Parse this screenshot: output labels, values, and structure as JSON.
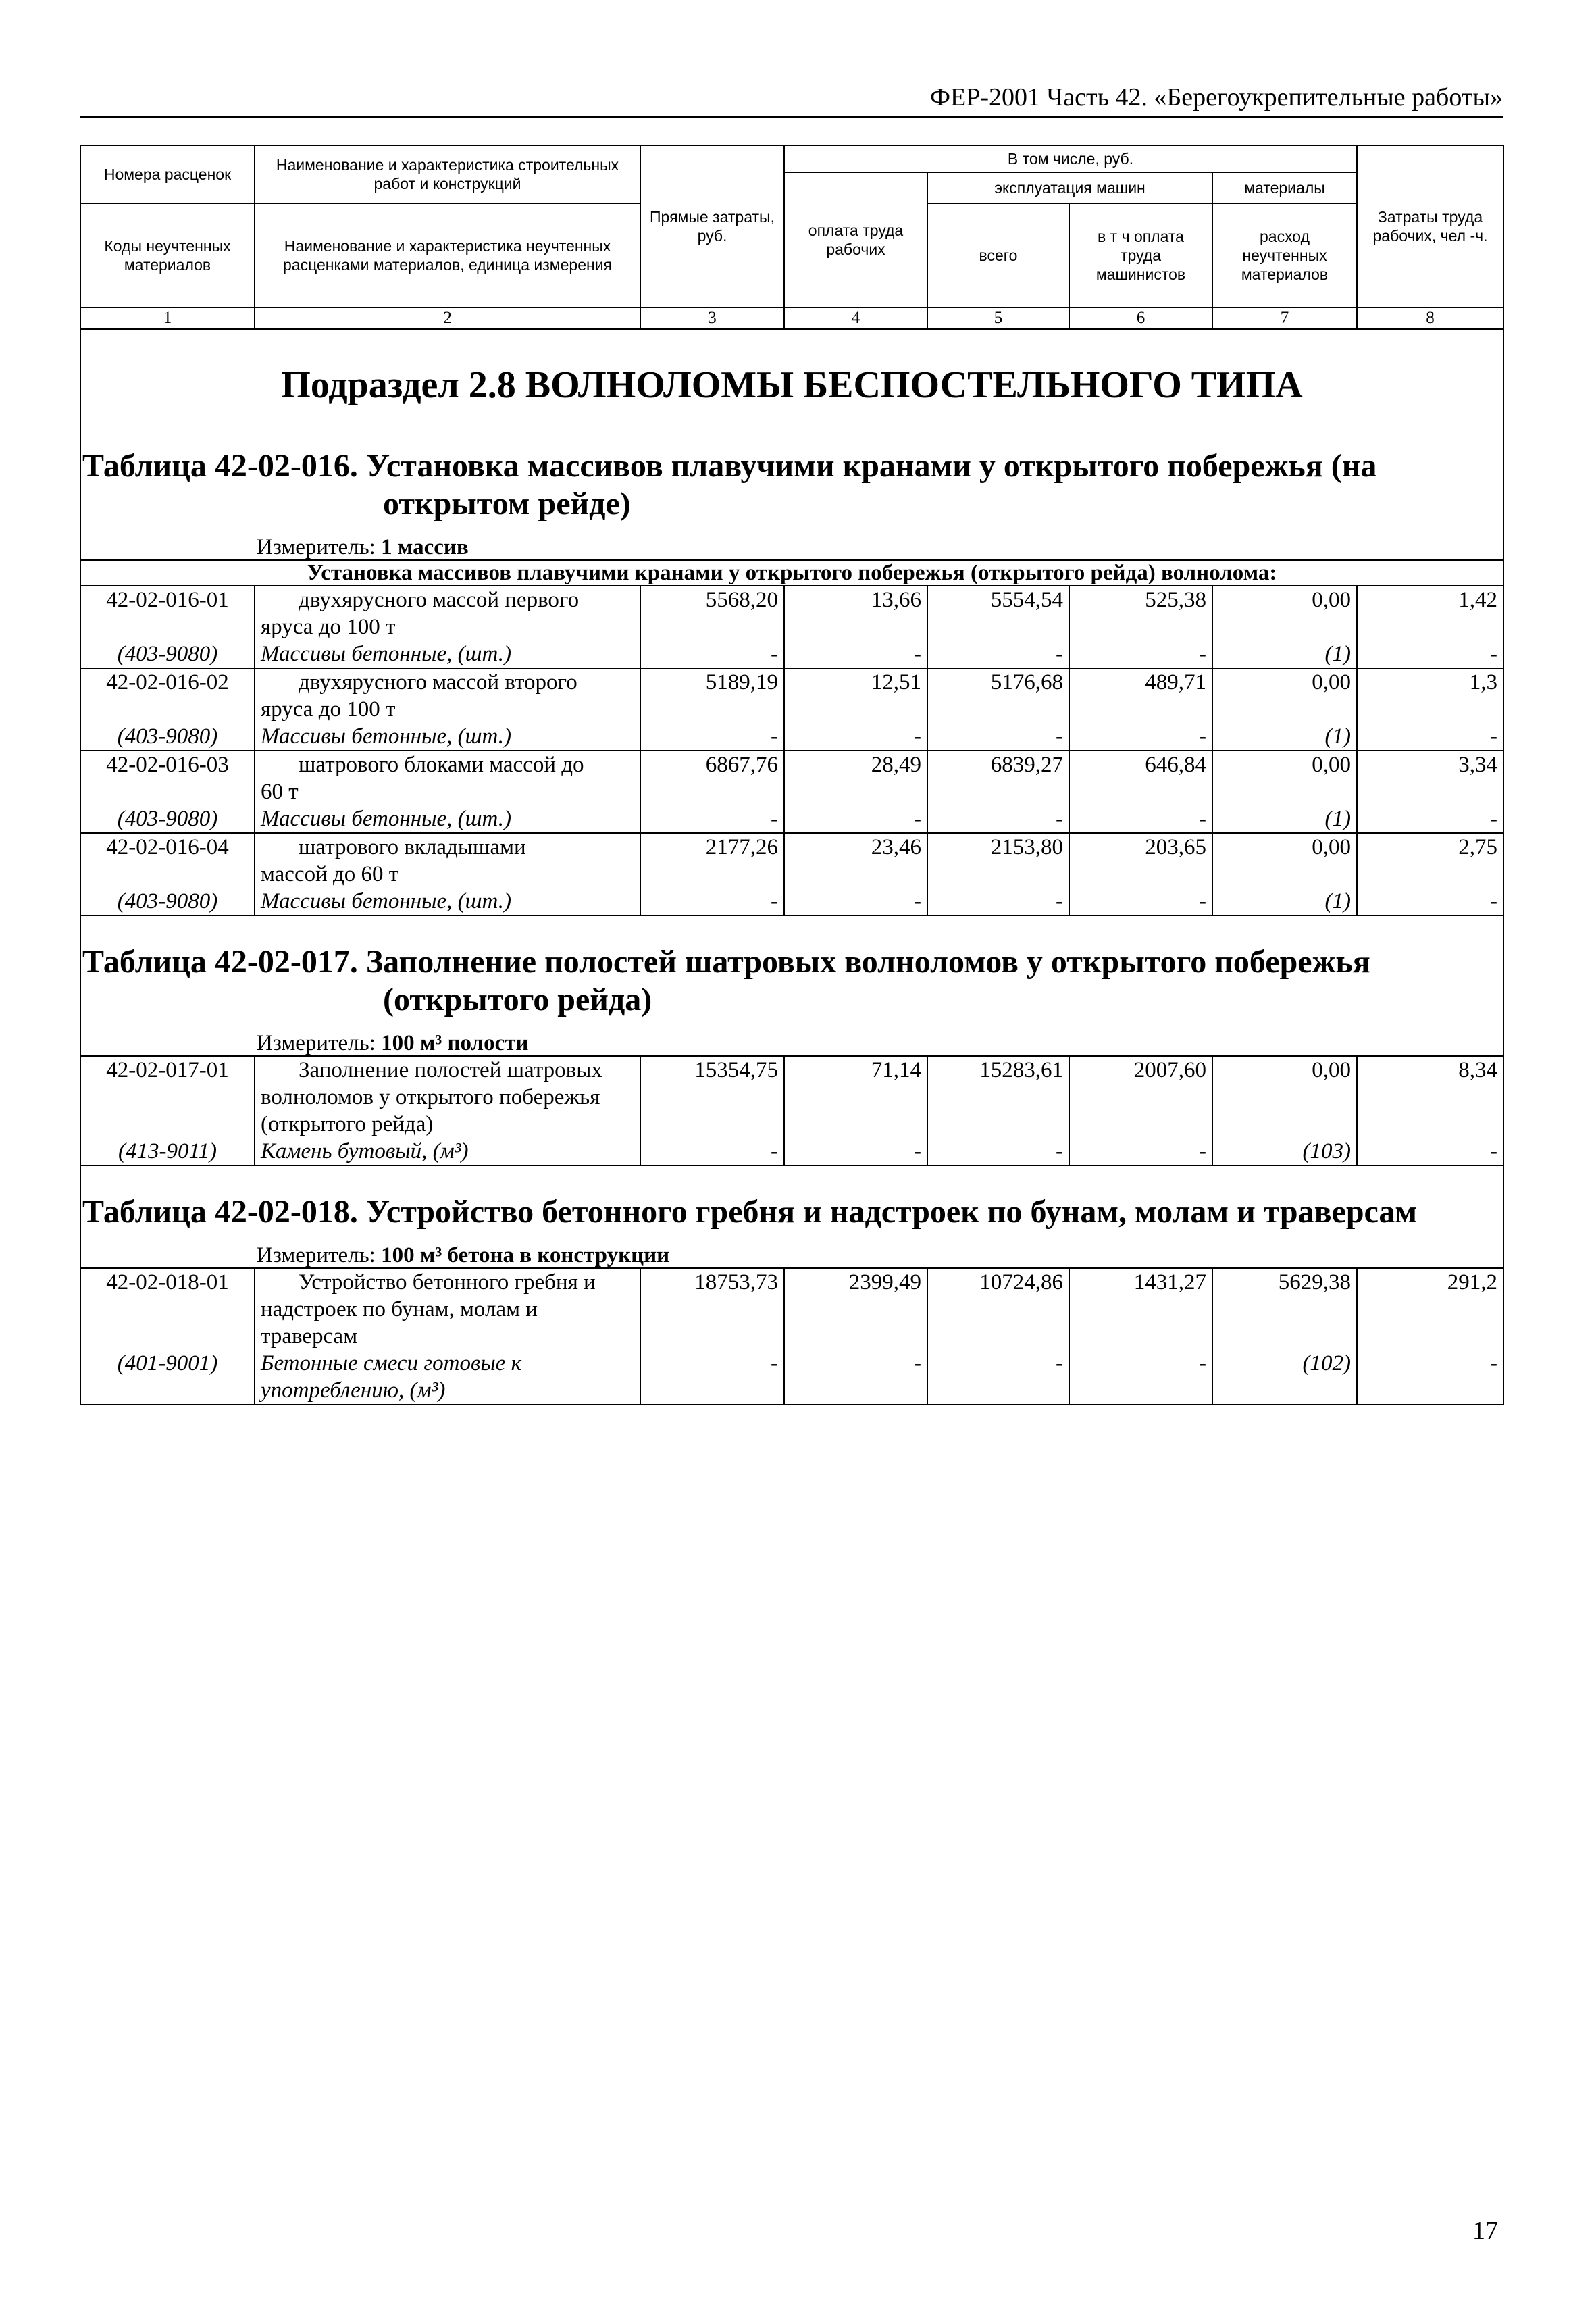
{
  "page_header": "ФЕР-2001 Часть 42. «Берегоукрепительные работы»",
  "page_number": "17",
  "columns": {
    "rate_numbers": "Номера расценок",
    "work_name": "Наименование и характеристика строительных работ и конструкций",
    "direct_costs": "Прямые затраты, руб.",
    "including": "В том числе, руб.",
    "labor_pay": "оплата труда рабочих",
    "machine_ops": "эксплуатация машин",
    "machine_total": "всего",
    "machinist_pay": "в т ч оплата труда машинистов",
    "materials": "материалы",
    "material_consumption": "расход неучтенных материалов",
    "labor_costs": "Затраты труда рабочих, чел -ч.",
    "material_codes": "Коды неучтенных материалов",
    "material_name": "Наименование и характеристика неучтенных расценками материалов, единица измерения",
    "numbers": [
      "1",
      "2",
      "3",
      "4",
      "5",
      "6",
      "7",
      "8"
    ]
  },
  "section_title": "Подраздел 2.8 ВОЛНОЛОМЫ БЕСПОСТЕЛЬНОГО ТИПА",
  "tables": [
    {
      "title_line1": "Таблица 42-02-016. Установка массивов плавучими кранами у открытого побережья (на",
      "title_line2": "открытом рейде)",
      "unit_label": "Измеритель: ",
      "unit_value": "1 массив",
      "group": "Установка массивов плавучими кранами у открытого побережья (открытого рейда) волнолома:",
      "rows": [
        {
          "code": "42-02-016-01",
          "desc_first": "двухярусного массой первого",
          "desc_rest": "яруса до 100 т",
          "values": [
            "5568,20",
            "13,66",
            "5554,54",
            "525,38",
            "0,00",
            "1,42"
          ],
          "mat_code": "(403-9080)",
          "mat_name": "Массивы бетонные, (шт.)",
          "mat_values": [
            "-",
            "-",
            "-",
            "-",
            "(1)",
            "-"
          ]
        },
        {
          "code": "42-02-016-02",
          "desc_first": "двухярусного массой второго",
          "desc_rest": "яруса до 100 т",
          "values": [
            "5189,19",
            "12,51",
            "5176,68",
            "489,71",
            "0,00",
            "1,3"
          ],
          "mat_code": "(403-9080)",
          "mat_name": "Массивы бетонные, (шт.)",
          "mat_values": [
            "-",
            "-",
            "-",
            "-",
            "(1)",
            "-"
          ]
        },
        {
          "code": "42-02-016-03",
          "desc_first": "шатрового блоками массой до",
          "desc_rest": "60 т",
          "values": [
            "6867,76",
            "28,49",
            "6839,27",
            "646,84",
            "0,00",
            "3,34"
          ],
          "mat_code": "(403-9080)",
          "mat_name": "Массивы бетонные, (шт.)",
          "mat_values": [
            "-",
            "-",
            "-",
            "-",
            "(1)",
            "-"
          ]
        },
        {
          "code": "42-02-016-04",
          "desc_first": "шатрового вкладышами",
          "desc_rest": "массой до 60 т",
          "values": [
            "2177,26",
            "23,46",
            "2153,80",
            "203,65",
            "0,00",
            "2,75"
          ],
          "mat_code": "(403-9080)",
          "mat_name": "Массивы бетонные, (шт.)",
          "mat_values": [
            "-",
            "-",
            "-",
            "-",
            "(1)",
            "-"
          ]
        }
      ]
    },
    {
      "title_line1": "Таблица 42-02-017. Заполнение полостей шатровых волноломов у открытого побережья",
      "title_line2": "(открытого рейда)",
      "unit_label": "Измеритель: ",
      "unit_value": "100 м³ полости",
      "rows": [
        {
          "code": "42-02-017-01",
          "desc_first": "Заполнение полостей шатровых",
          "desc_rest": "волноломов у открытого побережья (открытого рейда)",
          "values": [
            "15354,75",
            "71,14",
            "15283,61",
            "2007,60",
            "0,00",
            "8,34"
          ],
          "mat_code": "(413-9011)",
          "mat_name": "Камень бутовый, (м³)",
          "mat_values": [
            "-",
            "-",
            "-",
            "-",
            "(103)",
            "-"
          ]
        }
      ]
    },
    {
      "title_line1": "Таблица 42-02-018. Устройство бетонного гребня и надстроек по бунам, молам и траверсам",
      "title_line2": "",
      "unit_label": "Измеритель: ",
      "unit_value": "100 м³ бетона в конструкции",
      "rows": [
        {
          "code": "42-02-018-01",
          "desc_first": "Устройство бетонного гребня и",
          "desc_rest": "надстроек по бунам, молам и траверсам",
          "values": [
            "18753,73",
            "2399,49",
            "10724,86",
            "1431,27",
            "5629,38",
            "291,2"
          ],
          "mat_code": "(401-9001)",
          "mat_name": "Бетонные смеси готовые к употреблению, (м³)",
          "mat_values": [
            "-",
            "-",
            "-",
            "-",
            "(102)",
            "-"
          ]
        }
      ]
    }
  ]
}
